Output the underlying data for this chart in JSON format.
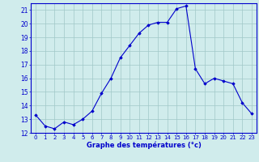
{
  "hours": [
    0,
    1,
    2,
    3,
    4,
    5,
    6,
    7,
    8,
    9,
    10,
    11,
    12,
    13,
    14,
    15,
    16,
    17,
    18,
    19,
    20,
    21,
    22,
    23
  ],
  "temperatures": [
    13.3,
    12.5,
    12.3,
    12.8,
    12.6,
    13.0,
    13.6,
    14.9,
    16.0,
    17.5,
    18.4,
    19.3,
    19.9,
    20.1,
    20.1,
    21.1,
    21.3,
    16.7,
    15.6,
    16.0,
    15.8,
    15.6,
    14.2,
    13.4
  ],
  "xlabel": "Graphe des températures (°c)",
  "ylim": [
    12,
    21.5
  ],
  "xlim_min": -0.5,
  "xlim_max": 23.5,
  "yticks": [
    12,
    13,
    14,
    15,
    16,
    17,
    18,
    19,
    20,
    21
  ],
  "xticks": [
    0,
    1,
    2,
    3,
    4,
    5,
    6,
    7,
    8,
    9,
    10,
    11,
    12,
    13,
    14,
    15,
    16,
    17,
    18,
    19,
    20,
    21,
    22,
    23
  ],
  "line_color": "#0000cc",
  "marker_color": "#0000cc",
  "bg_color": "#d0ecec",
  "grid_color": "#a0c8c8",
  "xlabel_color": "#0000cc",
  "tick_color": "#0000cc",
  "tick_fontsize": 5.0,
  "xlabel_fontsize": 6.0
}
